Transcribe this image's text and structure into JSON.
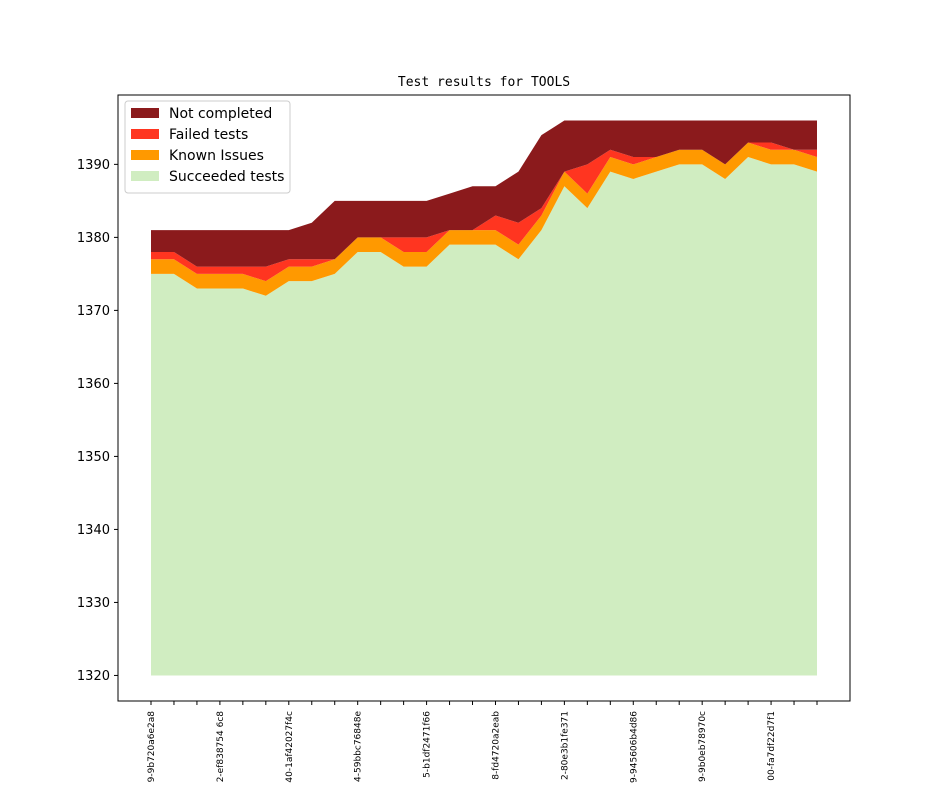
{
  "chart_data": {
    "type": "area",
    "stacked": true,
    "title": "Test results for TOOLS",
    "xlabel": "",
    "ylabel": "",
    "ylim": [
      1316.5,
      1399.5
    ],
    "yticks": [
      1320,
      1330,
      1340,
      1350,
      1360,
      1370,
      1380,
      1390
    ],
    "baseline": 1320,
    "x": [
      0,
      1,
      2,
      3,
      4,
      5,
      6,
      7,
      8,
      9,
      10,
      11,
      12,
      13,
      14,
      15,
      16,
      17,
      18,
      19,
      20,
      21,
      22,
      23,
      24,
      25,
      26,
      27,
      28,
      29
    ],
    "xtick_labels": [
      {
        "index": 0,
        "label": "9-9b720a6e2a8"
      },
      {
        "index": 3,
        "label": "2-ef838754 6c8"
      },
      {
        "index": 6,
        "label": "40-1af42027f4c"
      },
      {
        "index": 9,
        "label": "4-59bbc76848e"
      },
      {
        "index": 12,
        "label": "5-b1df2471f66"
      },
      {
        "index": 15,
        "label": "8-fd4720a2eab"
      },
      {
        "index": 18,
        "label": "2-80e3b1fe371"
      },
      {
        "index": 21,
        "label": "9-945606b4d86"
      },
      {
        "index": 24,
        "label": "9-9b0eb78970c"
      },
      {
        "index": 27,
        "label": "00-fa7df22d7f1"
      }
    ],
    "series": [
      {
        "name": "Succeeded tests",
        "color": "#d0edc1",
        "cumulative_top": [
          1375,
          1375,
          1373,
          1373,
          1373,
          1372,
          1374,
          1374,
          1375,
          1378,
          1378,
          1376,
          1376,
          1379,
          1379,
          1379,
          1377,
          1381,
          1387,
          1384,
          1389,
          1388,
          1389,
          1390,
          1390,
          1388,
          1391,
          1390,
          1390,
          1389
        ]
      },
      {
        "name": "Known Issues",
        "color": "#ff9900",
        "cumulative_top": [
          1377,
          1377,
          1375,
          1375,
          1375,
          1374,
          1376,
          1376,
          1377,
          1380,
          1380,
          1378,
          1378,
          1381,
          1381,
          1381,
          1379,
          1383,
          1389,
          1386,
          1391,
          1390,
          1391,
          1392,
          1392,
          1390,
          1393,
          1392,
          1392,
          1391
        ]
      },
      {
        "name": "Failed tests",
        "color": "#ff3520",
        "cumulative_top": [
          1378,
          1378,
          1376,
          1376,
          1376,
          1376,
          1377,
          1377,
          1377,
          1380,
          1380,
          1380,
          1380,
          1381,
          1381,
          1383,
          1382,
          1384,
          1389,
          1390,
          1392,
          1391,
          1391,
          1392,
          1392,
          1390,
          1393,
          1393,
          1392,
          1392
        ]
      },
      {
        "name": "Not completed",
        "color": "#8b1a1c",
        "cumulative_top": [
          1381,
          1381,
          1381,
          1381,
          1381,
          1381,
          1381,
          1382,
          1385,
          1385,
          1385,
          1385,
          1385,
          1386,
          1387,
          1387,
          1389,
          1394,
          1396,
          1396,
          1396,
          1396,
          1396,
          1396,
          1396,
          1396,
          1396,
          1396,
          1396,
          1396
        ]
      }
    ],
    "legend": {
      "position": "top-left",
      "order": [
        "Not completed",
        "Failed tests",
        "Known Issues",
        "Succeeded tests"
      ]
    }
  }
}
